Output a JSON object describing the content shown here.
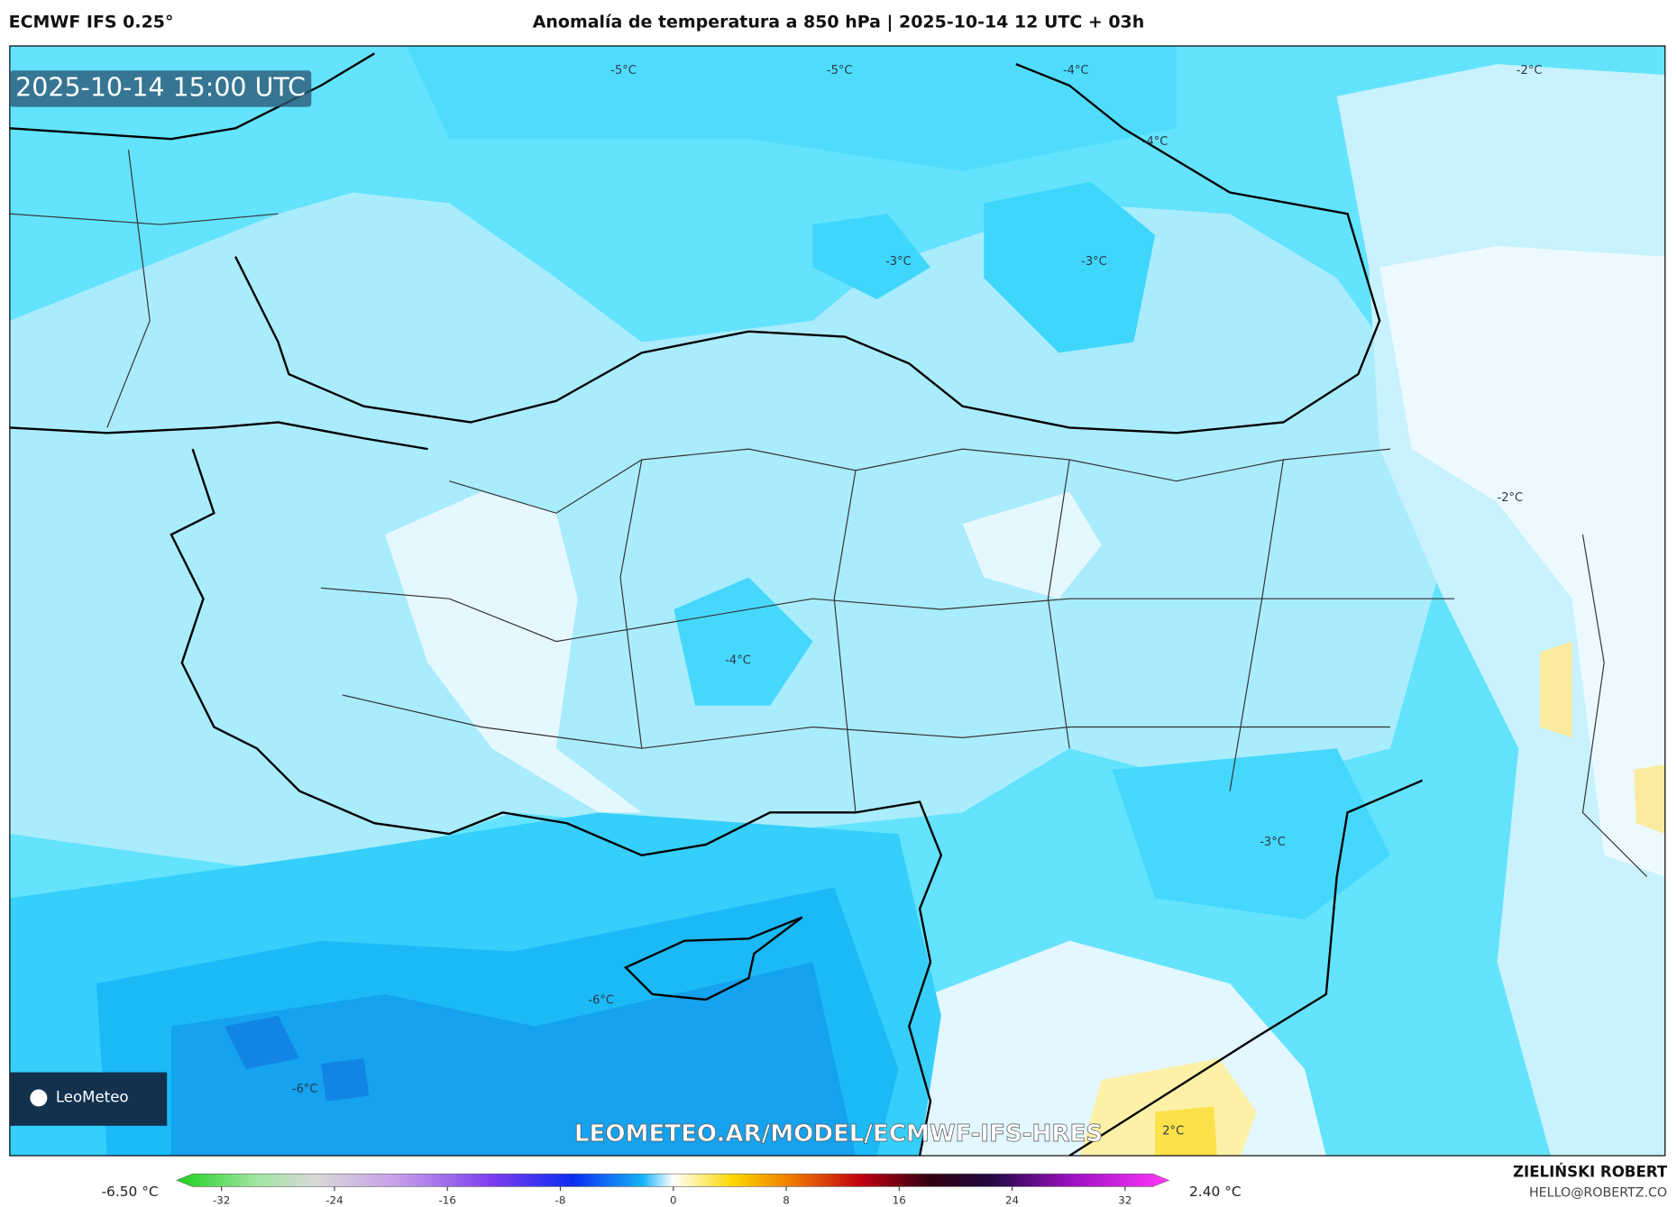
{
  "header": {
    "model": "ECMWF IFS 0.25°",
    "title": "Anomalía de temperatura a 850 hPa | 2025-10-14 12 UTC + 03h"
  },
  "map": {
    "timestamp": "2025-10-14 15:00 UTC",
    "watermark": "LEOMETEO.AR/MODEL/ECMWF-IFS-HRES",
    "logo": "LeoMeteo",
    "contour_labels": [
      "-5°C",
      "-5°C",
      "-4°C",
      "-2°C",
      "-4°C",
      "-3°C",
      "-3°C",
      "-2°C",
      "-4°C",
      "-3°C",
      "-6°C",
      "-6°C",
      "2°C"
    ]
  },
  "colorbar": {
    "min_label": "-6.50 °C",
    "max_label": "2.40 °C",
    "ticks": [
      -32,
      -24,
      -16,
      -8,
      0,
      8,
      16,
      24,
      32
    ]
  },
  "footer": {
    "author": "ZIELIŃSKI ROBERT",
    "email": "HELLO@ROBERTZ.CO"
  }
}
